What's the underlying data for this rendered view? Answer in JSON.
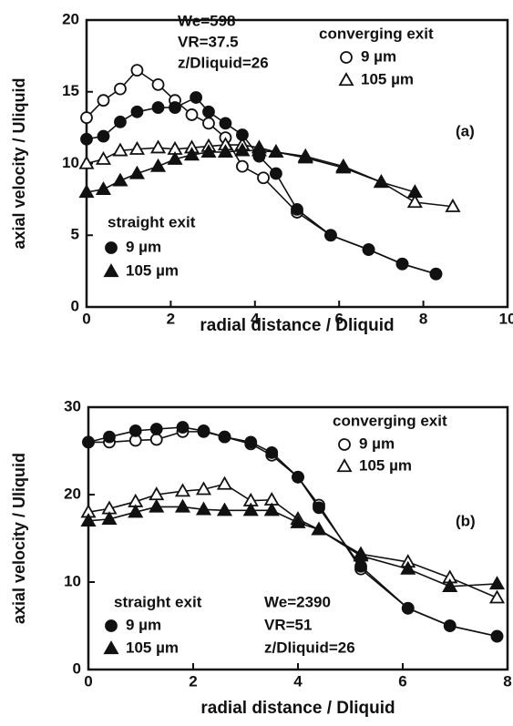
{
  "chart_data": [
    {
      "type": "line",
      "xlabel": "radial distance / Dliquid",
      "ylabel": "axial velocity / Uliquid",
      "xlim": [
        0,
        10
      ],
      "xticks": [
        0,
        2,
        4,
        6,
        8,
        10
      ],
      "ylim": [
        0,
        20
      ],
      "yticks": [
        0,
        5,
        10,
        15,
        20
      ],
      "annotations": [
        "We=598",
        "VR=37.5",
        "z/Dliquid=26",
        "(a)"
      ],
      "groups": [
        {
          "title": "converging exit",
          "series": [
            {
              "name": "9 µm",
              "marker": "circle",
              "filled": false,
              "color": "#111",
              "x": [
                0,
                0.4,
                0.8,
                1.2,
                1.7,
                2.1,
                2.5,
                2.9,
                3.3,
                3.7,
                4.2,
                5.0,
                5.8,
                6.7,
                7.5,
                8.3
              ],
              "values": [
                13.2,
                14.4,
                15.2,
                16.5,
                15.5,
                14.4,
                13.4,
                12.8,
                11.8,
                9.8,
                9.0,
                6.6,
                5.0,
                4.0,
                3.0,
                2.3
              ]
            },
            {
              "name": "105 µm",
              "marker": "triangle",
              "filled": false,
              "color": "#111",
              "x": [
                0,
                0.4,
                0.8,
                1.2,
                1.7,
                2.1,
                2.5,
                2.9,
                3.3,
                3.7,
                4.1,
                4.5,
                5.2,
                6.1,
                7.0,
                7.8,
                8.7
              ],
              "values": [
                10.0,
                10.3,
                10.9,
                11.0,
                11.1,
                11.0,
                11.1,
                11.2,
                11.3,
                11.3,
                11.1,
                10.8,
                10.5,
                9.8,
                8.7,
                7.3,
                7.0
              ]
            }
          ]
        },
        {
          "title": "straight exit",
          "series": [
            {
              "name": "9 µm",
              "marker": "circle",
              "filled": true,
              "color": "#111",
              "x": [
                0,
                0.4,
                0.8,
                1.2,
                1.7,
                2.1,
                2.6,
                2.9,
                3.3,
                3.7,
                4.1,
                4.5,
                5.0,
                5.8,
                6.7,
                7.5,
                8.3
              ],
              "values": [
                11.7,
                11.9,
                12.9,
                13.6,
                13.9,
                13.9,
                14.6,
                13.6,
                12.8,
                12.0,
                10.5,
                9.3,
                6.8,
                5.0,
                4.0,
                3.0,
                2.3
              ]
            },
            {
              "name": "105 µm",
              "marker": "triangle",
              "filled": true,
              "color": "#111",
              "x": [
                0,
                0.4,
                0.8,
                1.2,
                1.7,
                2.1,
                2.5,
                2.9,
                3.3,
                3.7,
                4.1,
                4.5,
                5.2,
                6.1,
                7.0,
                7.8
              ],
              "values": [
                8.0,
                8.2,
                8.8,
                9.3,
                9.8,
                10.3,
                10.6,
                10.8,
                10.8,
                10.9,
                10.9,
                10.8,
                10.4,
                9.7,
                8.7,
                8.0
              ]
            }
          ]
        }
      ]
    },
    {
      "type": "line",
      "xlabel": "radial distance / Dliquid",
      "ylabel": "axial velocity / Uliquid",
      "xlim": [
        0,
        8
      ],
      "xticks": [
        0,
        2,
        4,
        6,
        8
      ],
      "ylim": [
        0,
        30
      ],
      "yticks": [
        0,
        10,
        20,
        30
      ],
      "annotations": [
        "(b)",
        "We=2390",
        "VR=51",
        "z/Dliquid=26"
      ],
      "groups": [
        {
          "title": "converging exit",
          "series": [
            {
              "name": "9 µm",
              "marker": "circle",
              "filled": false,
              "color": "#111",
              "x": [
                0,
                0.4,
                0.9,
                1.3,
                1.8,
                2.2,
                2.6,
                3.1,
                3.5,
                4.0,
                4.4,
                5.2,
                6.1,
                6.9,
                7.8
              ],
              "values": [
                26.0,
                26.0,
                26.2,
                26.3,
                27.2,
                27.2,
                26.6,
                25.8,
                24.5,
                22.0,
                18.8,
                11.5,
                7.0,
                5.0,
                3.8
              ]
            },
            {
              "name": "105 µm",
              "marker": "triangle",
              "filled": false,
              "color": "#111",
              "x": [
                0,
                0.4,
                0.9,
                1.3,
                1.8,
                2.2,
                2.6,
                3.1,
                3.5,
                4.0,
                4.4,
                5.2,
                6.1,
                6.9,
                7.8
              ],
              "values": [
                18.0,
                18.4,
                19.2,
                20.0,
                20.4,
                20.6,
                21.2,
                19.3,
                19.4,
                17.2,
                16.0,
                13.2,
                12.3,
                10.5,
                8.2
              ]
            }
          ]
        },
        {
          "title": "straight exit",
          "series": [
            {
              "name": "9 µm",
              "marker": "circle",
              "filled": true,
              "color": "#111",
              "x": [
                0,
                0.4,
                0.9,
                1.3,
                1.8,
                2.2,
                2.6,
                3.1,
                3.5,
                4.0,
                4.4,
                5.2,
                6.1,
                6.9,
                7.8
              ],
              "values": [
                26.0,
                26.6,
                27.3,
                27.5,
                27.7,
                27.3,
                26.6,
                26.0,
                24.8,
                22.0,
                18.5,
                11.8,
                7.0,
                5.0,
                3.8
              ]
            },
            {
              "name": "105 µm",
              "marker": "triangle",
              "filled": true,
              "color": "#111",
              "x": [
                0,
                0.4,
                0.9,
                1.3,
                1.8,
                2.2,
                2.6,
                3.1,
                3.5,
                4.0,
                4.4,
                5.2,
                6.1,
                6.9,
                7.8
              ],
              "values": [
                17.0,
                17.2,
                18.0,
                18.6,
                18.6,
                18.3,
                18.2,
                18.2,
                18.2,
                16.8,
                16.0,
                13.0,
                11.5,
                9.5,
                9.8
              ]
            }
          ]
        }
      ]
    }
  ]
}
